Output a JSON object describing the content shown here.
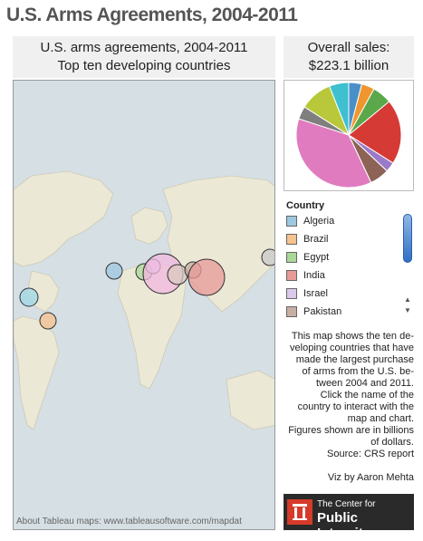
{
  "title": "U.S. Arms Agreements, 2004-2011",
  "map_panel": {
    "title_line1": "U.S. arms agreements, 2004-2011",
    "title_line2": "Top ten developing countries",
    "credit": "About Tableau maps: www.tableausoftware.com/mapdat"
  },
  "sales_panel": {
    "title_line1": "Overall sales:",
    "title_line2": "$223.1 billion"
  },
  "legend": {
    "title": "Country",
    "items": [
      {
        "label": "Algeria",
        "color": "#9ec7e0"
      },
      {
        "label": "Brazil",
        "color": "#f6c28e"
      },
      {
        "label": "Egypt",
        "color": "#a9d898"
      },
      {
        "label": "India",
        "color": "#e89a98"
      },
      {
        "label": "Israel",
        "color": "#dcc8ea"
      },
      {
        "label": "Pakistan",
        "color": "#c6aea3"
      }
    ]
  },
  "description": {
    "lines": [
      "This map shows the ten de-",
      "veloping countries that have",
      "made the largest purchase",
      "of arms from the U.S. be-",
      "tween 2004 and 2011.",
      "Click the name of the",
      "country to interact with the",
      "map and chart.",
      "Figures shown are in billions",
      "of dollars.",
      "Source: CRS report"
    ]
  },
  "viz_by": "Viz by Aaron Mehta",
  "logo": {
    "line1": "The Center for",
    "line2": "Public Integrity"
  },
  "chart_data": {
    "type": "pie",
    "title": "",
    "slices": [
      {
        "color": "#4a90c8",
        "value": 4
      },
      {
        "color": "#f0962e",
        "value": 4
      },
      {
        "color": "#5aa84a",
        "value": 6
      },
      {
        "color": "#d63a35",
        "value": 20
      },
      {
        "color": "#9b7ac8",
        "value": 3
      },
      {
        "color": "#8c6356",
        "value": 6
      },
      {
        "color": "#e07bbf",
        "value": 37
      },
      {
        "color": "#7f7f7f",
        "value": 4
      },
      {
        "color": "#b8c83a",
        "value": 10
      },
      {
        "color": "#3ec0d0",
        "value": 6
      }
    ]
  }
}
